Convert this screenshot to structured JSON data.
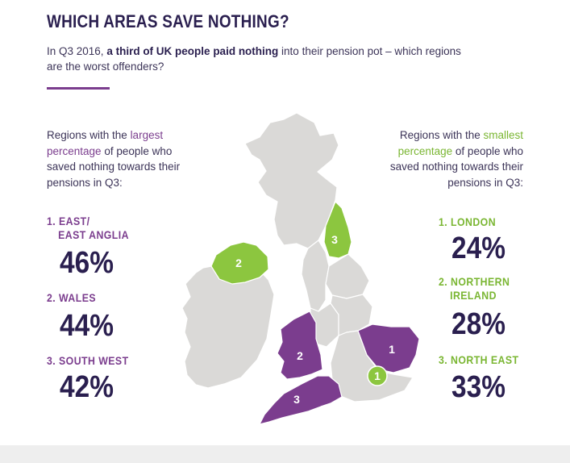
{
  "header": {
    "title": "WHICH AREAS SAVE NOTHING?",
    "subtitle_pre": "In Q3 2016, ",
    "subtitle_bold": "a third of UK people paid nothing",
    "subtitle_post": " into their pension pot – which regions are the worst offenders?"
  },
  "left": {
    "intro_pre": "Regions with the ",
    "intro_highlight": "largest percentage",
    "intro_post": " of people who saved nothing towards their pensions in Q3:",
    "ranks": [
      {
        "label_line1": "1. EAST/",
        "label_line2": "EAST ANGLIA",
        "value": "46%"
      },
      {
        "label_line1": "2. WALES",
        "label_line2": "",
        "value": "44%"
      },
      {
        "label_line1": "3. SOUTH WEST",
        "label_line2": "",
        "value": "42%"
      }
    ]
  },
  "right": {
    "intro_pre": "Regions with the ",
    "intro_highlight": "smallest percentage",
    "intro_post": " of people who saved nothing towards their pensions in Q3:",
    "ranks": [
      {
        "label_line1": "1. LONDON",
        "label_line2": "",
        "value": "24%"
      },
      {
        "label_line1": "2. NORTHERN",
        "label_line2": "IRELAND",
        "value": "28%"
      },
      {
        "label_line1": "3. NORTH EAST",
        "label_line2": "",
        "value": "33%"
      }
    ]
  },
  "map": {
    "markers": {
      "east": "1",
      "wales": "2",
      "south_west": "3",
      "london": "1",
      "northern_ireland": "2",
      "north_east": "3"
    },
    "colors": {
      "land": "#dad9d7",
      "border": "#ffffff",
      "largest": "#7b3d8e",
      "smallest": "#8cc63f",
      "marker_text": "#ffffff"
    }
  }
}
